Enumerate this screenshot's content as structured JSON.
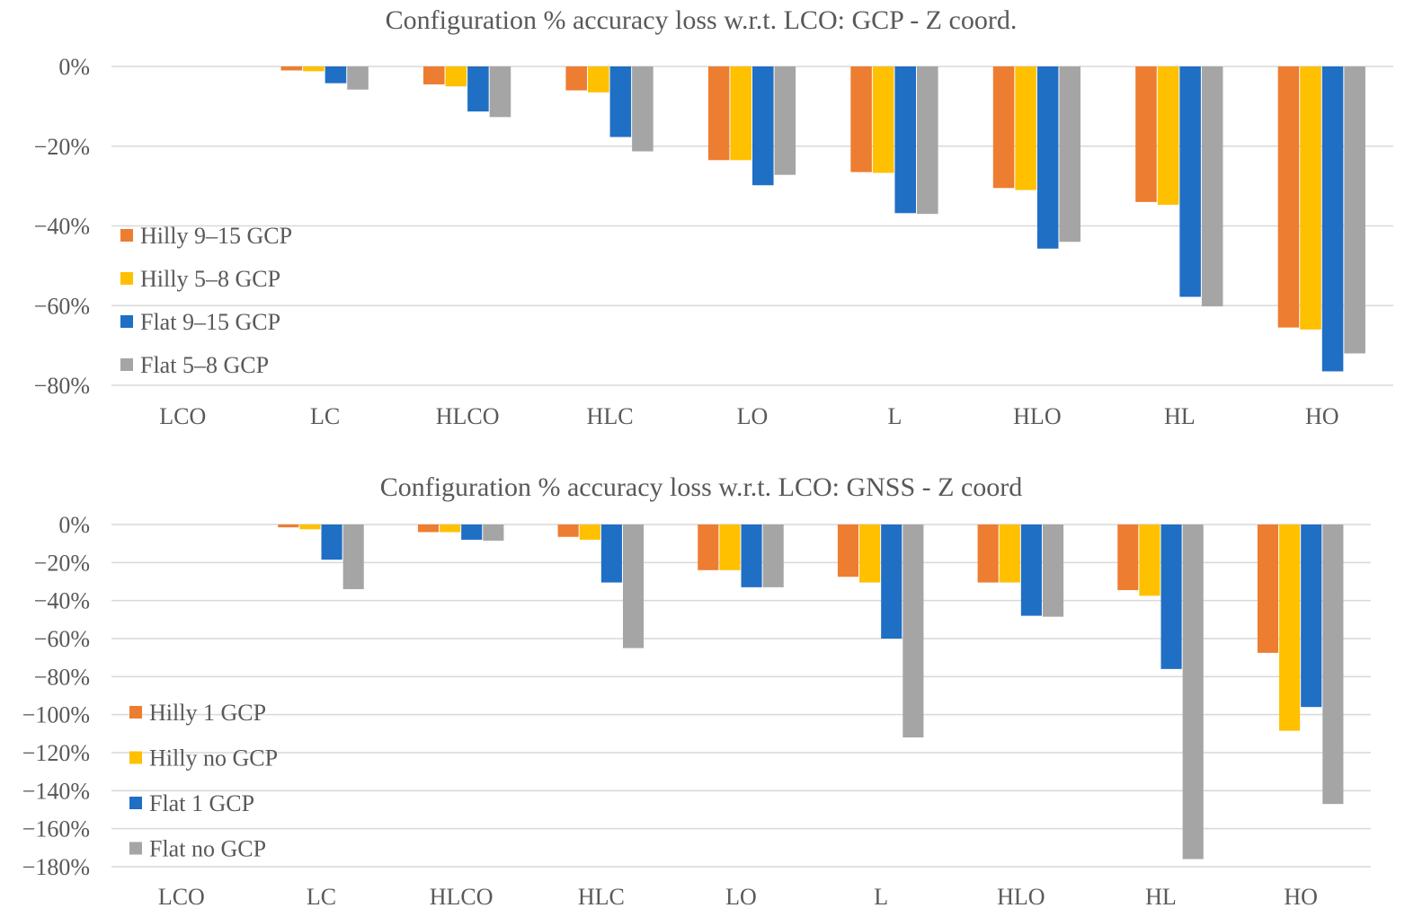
{
  "chart_data": [
    {
      "type": "bar",
      "title": "Configuration % accuracy loss w.r.t. LCO: GCP - Z coord.",
      "categories": [
        "LCO",
        "LC",
        "HLCO",
        "HLC",
        "LO",
        "L",
        "HLO",
        "HL",
        "HO"
      ],
      "ylim": [
        -80,
        0
      ],
      "yticks": [
        0,
        -20,
        -40,
        -60,
        -80
      ],
      "ytick_labels": [
        "0%",
        "−20%",
        "−40%",
        "−60%",
        "−80%"
      ],
      "legend_position": "left",
      "series": [
        {
          "name": "Hilly 9–15 GCP",
          "color": "#ED7D31",
          "values": [
            0,
            -1,
            -4.5,
            -6,
            -23.5,
            -26.5,
            -30.5,
            -34,
            -65.5
          ]
        },
        {
          "name": "Hilly 5–8 GCP",
          "color": "#FFC000",
          "values": [
            0,
            -1.2,
            -5,
            -6.5,
            -23.5,
            -26.7,
            -31,
            -34.7,
            -66
          ]
        },
        {
          "name": "Flat 9–15 GCP",
          "color": "#1F6FC5",
          "values": [
            0,
            -4.2,
            -11.3,
            -17.7,
            -29.8,
            -36.8,
            -45.7,
            -57.8,
            -76.5
          ]
        },
        {
          "name": "Flat 5–8 GCP",
          "color": "#A5A5A5",
          "values": [
            0,
            -5.8,
            -12.7,
            -21.3,
            -27.2,
            -37,
            -44,
            -60.2,
            -72
          ]
        }
      ]
    },
    {
      "type": "bar",
      "title": "Configuration % accuracy loss w.r.t. LCO: GNSS - Z coord",
      "categories": [
        "LCO",
        "LC",
        "HLCO",
        "HLC",
        "LO",
        "L",
        "HLO",
        "HL",
        "HO"
      ],
      "ylim": [
        -180,
        0
      ],
      "yticks": [
        0,
        -20,
        -40,
        -60,
        -80,
        -100,
        -120,
        -140,
        -160,
        -180
      ],
      "ytick_labels": [
        "0%",
        "−20%",
        "−40%",
        "−60%",
        "−80%",
        "−100%",
        "−120%",
        "−140%",
        "−160%",
        "−180%"
      ],
      "legend_position": "left",
      "series": [
        {
          "name": "Hilly 1 GCP",
          "color": "#ED7D31",
          "values": [
            0,
            -1.5,
            -4,
            -6.5,
            -24,
            -27.5,
            -30.5,
            -34.5,
            -67.5
          ]
        },
        {
          "name": "Hilly no GCP",
          "color": "#FFC000",
          "values": [
            0,
            -2.5,
            -4,
            -8,
            -24,
            -30.5,
            -30.5,
            -37.5,
            -108.5
          ]
        },
        {
          "name": "Flat 1 GCP",
          "color": "#1F6FC5",
          "values": [
            0,
            -18.5,
            -8,
            -30.5,
            -33,
            -60,
            -48,
            -76,
            -96
          ]
        },
        {
          "name": "Flat no GCP",
          "color": "#A5A5A5",
          "values": [
            0,
            -34,
            -8.5,
            -65,
            -33,
            -112,
            -48.5,
            -176,
            -147
          ]
        }
      ]
    }
  ]
}
